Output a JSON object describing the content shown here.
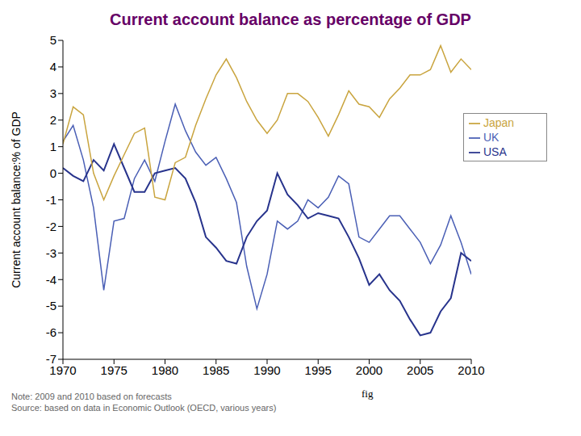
{
  "chart_data": {
    "type": "line",
    "title": "Current account balance as percentage of GDP",
    "y_label": "Current account balance:% of GDP",
    "x": [
      1970,
      1971,
      1972,
      1973,
      1974,
      1975,
      1976,
      1977,
      1978,
      1979,
      1980,
      1981,
      1982,
      1983,
      1984,
      1985,
      1986,
      1987,
      1988,
      1989,
      1990,
      1991,
      1992,
      1993,
      1994,
      1995,
      1996,
      1997,
      1998,
      1999,
      2000,
      2001,
      2002,
      2003,
      2004,
      2005,
      2006,
      2007,
      2008,
      2009,
      2010
    ],
    "series": [
      {
        "name": "UK",
        "color": "#4a5fb5",
        "values": [
          1.2,
          1.8,
          0.5,
          -1.3,
          -4.4,
          -1.8,
          -1.7,
          -0.2,
          0.5,
          -0.3,
          1.2,
          2.6,
          1.6,
          0.8,
          0.3,
          0.6,
          -0.2,
          -1.1,
          -3.5,
          -5.1,
          -3.8,
          -1.8,
          -2.1,
          -1.8,
          -1.0,
          -1.3,
          -0.9,
          -0.1,
          -0.4,
          -2.4,
          -2.6,
          -2.1,
          -1.6,
          -1.6,
          -2.1,
          -2.6,
          -3.4,
          -2.7,
          -1.6,
          -2.6,
          -3.8
        ]
      },
      {
        "name": "USA",
        "color": "#27338c",
        "values": [
          0.2,
          -0.1,
          -0.3,
          0.5,
          0.1,
          1.1,
          0.2,
          -0.7,
          -0.7,
          0.0,
          0.1,
          0.2,
          -0.2,
          -1.1,
          -2.4,
          -2.8,
          -3.3,
          -3.4,
          -2.4,
          -1.8,
          -1.4,
          0.0,
          -0.8,
          -1.2,
          -1.7,
          -1.5,
          -1.6,
          -1.7,
          -2.4,
          -3.2,
          -4.2,
          -3.8,
          -4.4,
          -4.8,
          -5.5,
          -6.1,
          -6.0,
          -5.2,
          -4.7,
          -3.0,
          -3.3
        ]
      },
      {
        "name": "Japan",
        "color": "#c9a43e",
        "values": [
          1.1,
          2.5,
          2.2,
          0.0,
          -1.0,
          -0.1,
          0.7,
          1.5,
          1.7,
          -0.9,
          -1.0,
          0.4,
          0.6,
          1.8,
          2.8,
          3.7,
          4.3,
          3.6,
          2.7,
          2.0,
          1.5,
          2.0,
          3.0,
          3.0,
          2.7,
          2.1,
          1.4,
          2.2,
          3.1,
          2.6,
          2.5,
          2.1,
          2.8,
          3.2,
          3.7,
          3.7,
          3.9,
          4.8,
          3.8,
          4.3,
          3.9
        ]
      }
    ],
    "xlim": [
      1970,
      2010
    ],
    "xticks": [
      1970,
      1975,
      1980,
      1985,
      1990,
      1995,
      2000,
      2005,
      2010
    ],
    "ylim": [
      -7,
      5
    ],
    "yticks": [
      -7,
      -6,
      -5,
      -4,
      -3,
      -2,
      -1,
      0,
      1,
      2,
      3,
      4,
      5
    ],
    "grid": false,
    "legend": "upper right",
    "marker": "none",
    "notes": [
      "Note: 2009 and 2010 based on forecasts",
      "Source: based on data in Economic Outlook (OECD, various years)"
    ],
    "annotations": [
      "fig"
    ]
  }
}
